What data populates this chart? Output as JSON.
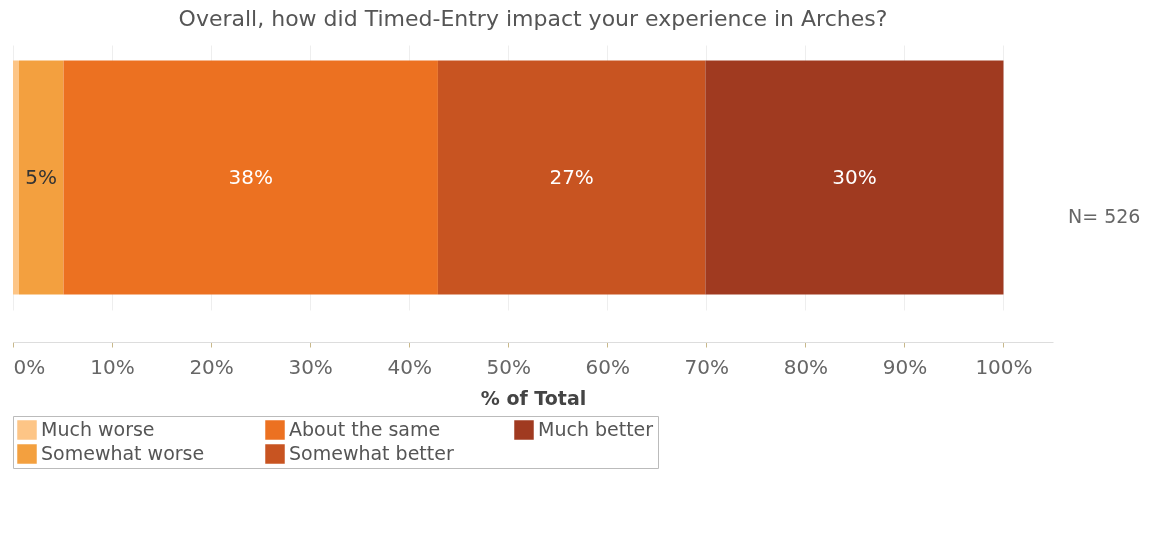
{
  "chart_data": {
    "type": "bar",
    "orientation": "horizontal",
    "stacked": true,
    "title": "Overall, how did Timed-Entry impact your experience in Arches?",
    "xlabel": "% of Total",
    "categories": [
      null
    ],
    "series": [
      {
        "name": "Much worse",
        "color": "#fdc586",
        "values": [
          0.6
        ],
        "value_labels": [
          null
        ]
      },
      {
        "name": "Somewhat worse",
        "color": "#f3a03f",
        "values": [
          4.5
        ],
        "value_labels": [
          "5%"
        ]
      },
      {
        "name": "About the same",
        "color": "#ec7121",
        "values": [
          37.8
        ],
        "value_labels": [
          "38%"
        ]
      },
      {
        "name": "Somewhat better",
        "color": "#c85421",
        "values": [
          27.0
        ],
        "value_labels": [
          "27%"
        ]
      },
      {
        "name": "Much better",
        "color": "#a03a20",
        "values": [
          30.1
        ],
        "value_labels": [
          "30%"
        ]
      }
    ],
    "xlim": [
      0,
      105
    ],
    "xticks": [
      {
        "value": 0,
        "label": "0%"
      },
      {
        "value": 10,
        "label": "10%"
      },
      {
        "value": 20,
        "label": "20%"
      },
      {
        "value": 30,
        "label": "30%"
      },
      {
        "value": 40,
        "label": "40%"
      },
      {
        "value": 50,
        "label": "50%"
      },
      {
        "value": 60,
        "label": "60%"
      },
      {
        "value": 70,
        "label": "70%"
      },
      {
        "value": 80,
        "label": "80%"
      },
      {
        "value": 90,
        "label": "90%"
      },
      {
        "value": 100,
        "label": "100%"
      }
    ],
    "grid": "x",
    "legend": "bottom",
    "tick_labels": "x",
    "annotations": [
      "N= 526"
    ]
  }
}
